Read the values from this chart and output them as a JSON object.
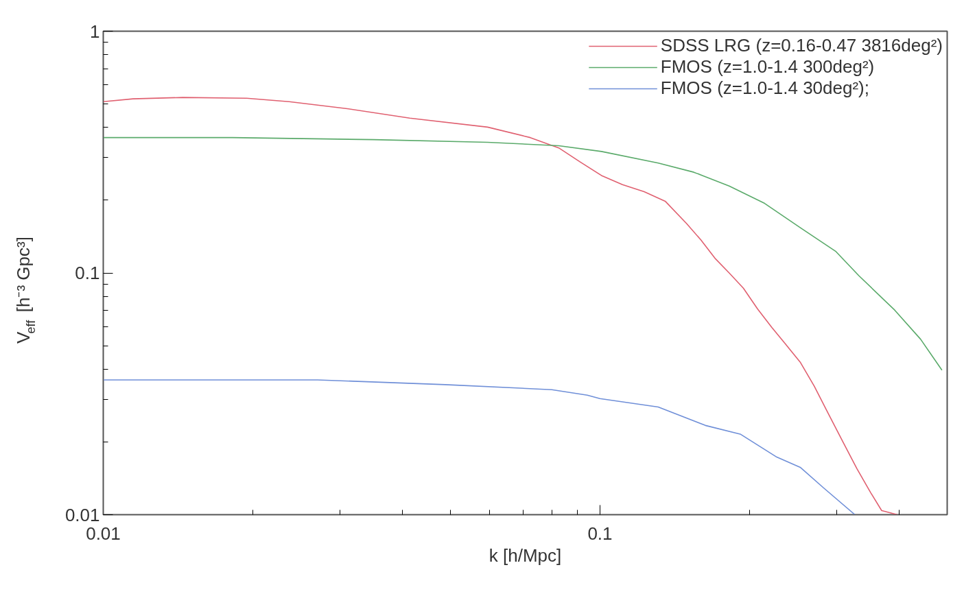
{
  "chart_data": {
    "type": "line",
    "xlabel": "k [h/Mpc]",
    "ylabel": "V$_{eff}$ [h⁻³ Gpc³]",
    "log": "xy",
    "grid": false,
    "legend": "top right",
    "marker": "none",
    "line_style": "solid",
    "xlim": [
      0.01,
      0.5
    ],
    "ylim": [
      0.01,
      1
    ],
    "xticks": [
      0.01,
      0.1
    ],
    "yticks": [
      0.01,
      0.1,
      1
    ],
    "series": [
      {
        "name": "SDSS LRG (z=0.16-0.47 3816deg²)",
        "color": "#e06070",
        "x": [
          0.01,
          0.01148,
          0.01445,
          0.01944,
          0.02367,
          0.0308,
          0.0414,
          0.0594,
          0.0724,
          0.0826,
          0.0912,
          0.1007,
          0.111,
          0.1227,
          0.1353,
          0.1494,
          0.1596,
          0.1704,
          0.182,
          0.1944,
          0.2076,
          0.2218,
          0.2368,
          0.2529,
          0.27,
          0.2884,
          0.308,
          0.329,
          0.351,
          0.369,
          0.397
        ],
        "values": [
          0.511,
          0.525,
          0.532,
          0.528,
          0.511,
          0.479,
          0.437,
          0.401,
          0.363,
          0.329,
          0.288,
          0.253,
          0.232,
          0.217,
          0.198,
          0.16,
          0.137,
          0.115,
          0.1,
          0.0865,
          0.071,
          0.0595,
          0.0505,
          0.0428,
          0.034,
          0.0261,
          0.0201,
          0.0155,
          0.0123,
          0.0104,
          0.01
        ]
      },
      {
        "name": "FMOS (z=1.0-1.4 300deg²)",
        "color": "#5aaa6a",
        "x": [
          0.01,
          0.0182,
          0.0351,
          0.0594,
          0.0826,
          0.1007,
          0.131,
          0.1545,
          0.182,
          0.2145,
          0.2529,
          0.298,
          0.332,
          0.392,
          0.442,
          0.488
        ],
        "values": [
          0.363,
          0.363,
          0.356,
          0.347,
          0.336,
          0.318,
          0.285,
          0.261,
          0.229,
          0.194,
          0.154,
          0.123,
          0.0974,
          0.0702,
          0.0532,
          0.0396
        ]
      },
      {
        "name": "FMOS (z=1.0-1.4 30deg²);",
        "color": "#6f8fd8",
        "x": [
          0.01,
          0.027,
          0.0488,
          0.08,
          0.0943,
          0.1,
          0.131,
          0.163,
          0.192,
          0.227,
          0.253,
          0.282,
          0.326
        ],
        "values": [
          0.0361,
          0.0361,
          0.0345,
          0.0329,
          0.0312,
          0.0302,
          0.0279,
          0.0234,
          0.0215,
          0.0173,
          0.0157,
          0.0129,
          0.01
        ]
      }
    ]
  }
}
